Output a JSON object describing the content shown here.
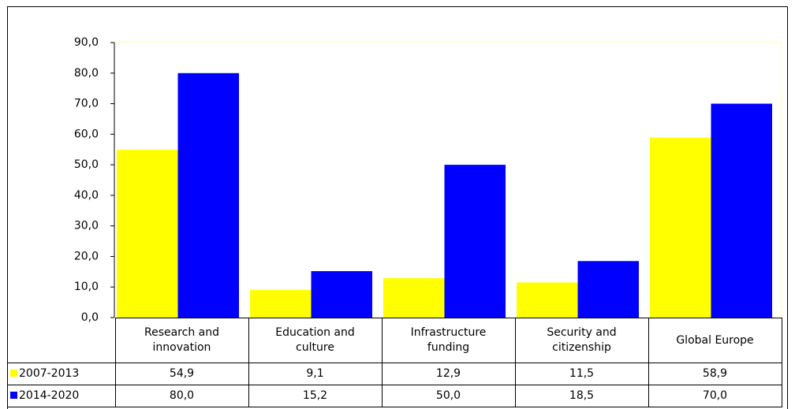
{
  "chart_data": {
    "type": "bar",
    "categories": [
      "Research and\ninnovation",
      "Education and\nculture",
      "Infrastructure\nfunding",
      "Security and\ncitizenship",
      "Global Europe"
    ],
    "series": [
      {
        "name": "2007-2013",
        "color": "#ffff00",
        "values": [
          54.9,
          9.1,
          12.9,
          11.5,
          58.9
        ],
        "value_labels": [
          "54,9",
          "9,1",
          "12,9",
          "11,5",
          "58,9"
        ]
      },
      {
        "name": "2014-2020",
        "color": "#0000ff",
        "values": [
          80.0,
          15.2,
          50.0,
          18.5,
          70.0
        ],
        "value_labels": [
          "80,0",
          "15,2",
          "50,0",
          "18,5",
          "70,0"
        ]
      }
    ],
    "ylim": [
      0,
      90
    ],
    "yticks": [
      {
        "value": 0,
        "label": "0,0"
      },
      {
        "value": 10,
        "label": "10,0"
      },
      {
        "value": 20,
        "label": "20,0"
      },
      {
        "value": 30,
        "label": "30,0"
      },
      {
        "value": 40,
        "label": "40,0"
      },
      {
        "value": 50,
        "label": "50,0"
      },
      {
        "value": 60,
        "label": "60,0"
      },
      {
        "value": 70,
        "label": "70,0"
      },
      {
        "value": 80,
        "label": "80,0"
      },
      {
        "value": 90,
        "label": "90,0"
      }
    ],
    "grid": false
  }
}
